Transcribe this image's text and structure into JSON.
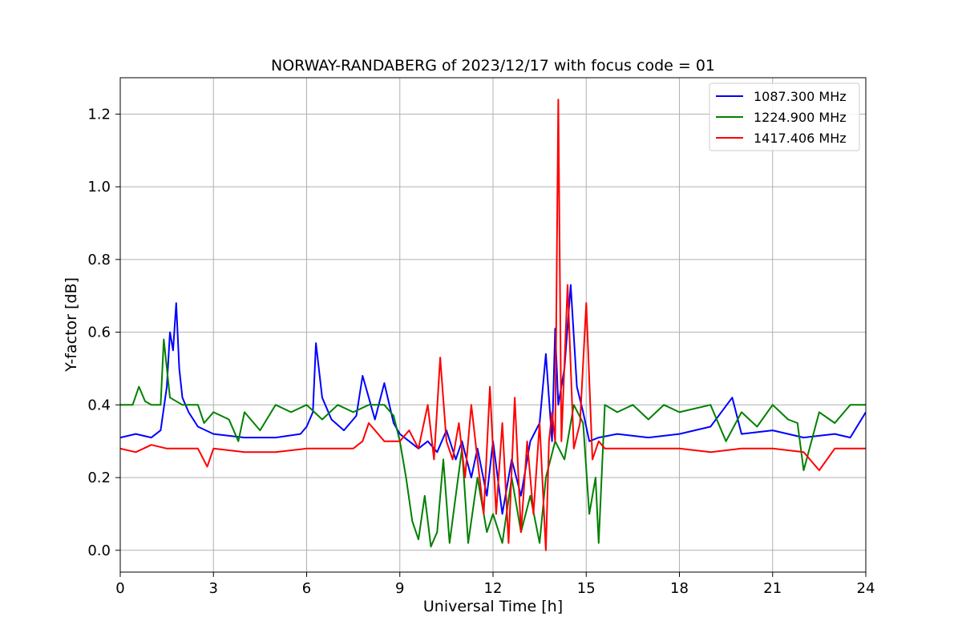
{
  "chart_data": {
    "type": "line",
    "title": "NORWAY-RANDABERG of 2023/12/17 with focus code = 01",
    "xlabel": "Universal Time [h]",
    "ylabel": "Y-factor [dB]",
    "xlim": [
      0,
      24
    ],
    "ylim": [
      -0.06,
      1.3
    ],
    "x_ticks": [
      0,
      3,
      6,
      9,
      12,
      15,
      18,
      21,
      24
    ],
    "y_ticks": [
      0.0,
      0.2,
      0.4,
      0.6,
      0.8,
      1.0,
      1.2
    ],
    "x_tick_labels": [
      "0",
      "3",
      "6",
      "9",
      "12",
      "15",
      "18",
      "21",
      "24"
    ],
    "y_tick_labels": [
      "0.0",
      "0.2",
      "0.4",
      "0.6",
      "0.8",
      "1.0",
      "1.2"
    ],
    "grid": true,
    "legend_position": "top-right",
    "series": [
      {
        "name": "1087.300 MHz",
        "color": "#0000ff",
        "x": [
          0.0,
          0.5,
          1.0,
          1.3,
          1.5,
          1.6,
          1.7,
          1.8,
          1.9,
          2.0,
          2.2,
          2.5,
          3.0,
          4.0,
          5.0,
          5.8,
          6.0,
          6.2,
          6.3,
          6.5,
          6.8,
          7.2,
          7.6,
          7.8,
          8.0,
          8.2,
          8.5,
          8.8,
          9.0,
          9.3,
          9.6,
          9.9,
          10.2,
          10.5,
          10.8,
          11.0,
          11.3,
          11.5,
          11.8,
          12.0,
          12.3,
          12.6,
          12.9,
          13.2,
          13.5,
          13.7,
          13.9,
          14.0,
          14.1,
          14.3,
          14.5,
          14.7,
          14.9,
          15.1,
          15.4,
          16.0,
          17.0,
          18.0,
          19.0,
          19.7,
          20.0,
          21.0,
          22.0,
          23.0,
          23.5,
          24.0
        ],
        "y": [
          0.31,
          0.32,
          0.31,
          0.33,
          0.45,
          0.6,
          0.55,
          0.68,
          0.5,
          0.42,
          0.38,
          0.34,
          0.32,
          0.31,
          0.31,
          0.32,
          0.34,
          0.38,
          0.57,
          0.42,
          0.36,
          0.33,
          0.37,
          0.48,
          0.42,
          0.36,
          0.46,
          0.35,
          0.32,
          0.3,
          0.28,
          0.3,
          0.27,
          0.33,
          0.25,
          0.3,
          0.2,
          0.28,
          0.15,
          0.3,
          0.1,
          0.25,
          0.15,
          0.3,
          0.35,
          0.54,
          0.3,
          0.61,
          0.4,
          0.5,
          0.73,
          0.45,
          0.38,
          0.3,
          0.31,
          0.32,
          0.31,
          0.32,
          0.34,
          0.42,
          0.32,
          0.33,
          0.31,
          0.32,
          0.31,
          0.38
        ]
      },
      {
        "name": "1224.900 MHz",
        "color": "#008000",
        "x": [
          0.0,
          0.4,
          0.6,
          0.8,
          1.0,
          1.3,
          1.4,
          1.6,
          2.0,
          2.5,
          2.7,
          3.0,
          3.5,
          3.8,
          4.0,
          4.5,
          5.0,
          5.5,
          6.0,
          6.5,
          7.0,
          7.5,
          8.0,
          8.5,
          8.8,
          9.0,
          9.2,
          9.4,
          9.6,
          9.8,
          10.0,
          10.2,
          10.4,
          10.6,
          10.8,
          11.0,
          11.2,
          11.5,
          11.8,
          12.0,
          12.3,
          12.6,
          12.9,
          13.2,
          13.5,
          13.7,
          14.0,
          14.3,
          14.6,
          14.9,
          15.1,
          15.3,
          15.4,
          15.6,
          16.0,
          16.5,
          17.0,
          17.5,
          18.0,
          19.0,
          19.5,
          20.0,
          20.5,
          21.0,
          21.5,
          21.8,
          22.0,
          22.5,
          23.0,
          23.5,
          24.0
        ],
        "y": [
          0.4,
          0.4,
          0.45,
          0.41,
          0.4,
          0.4,
          0.58,
          0.42,
          0.4,
          0.4,
          0.35,
          0.38,
          0.36,
          0.3,
          0.38,
          0.33,
          0.4,
          0.38,
          0.4,
          0.36,
          0.4,
          0.38,
          0.4,
          0.4,
          0.37,
          0.3,
          0.2,
          0.08,
          0.03,
          0.15,
          0.01,
          0.05,
          0.25,
          0.02,
          0.15,
          0.28,
          0.02,
          0.2,
          0.05,
          0.1,
          0.02,
          0.2,
          0.05,
          0.15,
          0.02,
          0.2,
          0.3,
          0.25,
          0.4,
          0.35,
          0.1,
          0.2,
          0.02,
          0.4,
          0.38,
          0.4,
          0.36,
          0.4,
          0.38,
          0.4,
          0.3,
          0.38,
          0.34,
          0.4,
          0.36,
          0.35,
          0.22,
          0.38,
          0.35,
          0.4,
          0.4
        ]
      },
      {
        "name": "1417.406 MHz",
        "color": "#ff0000",
        "x": [
          0.0,
          0.5,
          1.0,
          1.5,
          2.0,
          2.5,
          2.8,
          3.0,
          4.0,
          5.0,
          6.0,
          7.0,
          7.5,
          7.8,
          8.0,
          8.5,
          9.0,
          9.3,
          9.6,
          9.9,
          10.1,
          10.3,
          10.5,
          10.7,
          10.9,
          11.1,
          11.3,
          11.5,
          11.7,
          11.9,
          12.1,
          12.3,
          12.5,
          12.7,
          12.9,
          13.1,
          13.3,
          13.5,
          13.7,
          13.8,
          13.9,
          14.0,
          14.1,
          14.2,
          14.4,
          14.6,
          14.8,
          15.0,
          15.2,
          15.4,
          15.6,
          16.0,
          17.0,
          18.0,
          19.0,
          20.0,
          21.0,
          22.0,
          22.5,
          23.0,
          24.0
        ],
        "y": [
          0.28,
          0.27,
          0.29,
          0.28,
          0.28,
          0.28,
          0.23,
          0.28,
          0.27,
          0.27,
          0.28,
          0.28,
          0.28,
          0.3,
          0.35,
          0.3,
          0.3,
          0.33,
          0.28,
          0.4,
          0.25,
          0.53,
          0.3,
          0.25,
          0.35,
          0.2,
          0.4,
          0.25,
          0.1,
          0.45,
          0.1,
          0.35,
          0.02,
          0.42,
          0.05,
          0.3,
          0.1,
          0.35,
          0.0,
          0.3,
          0.38,
          0.3,
          1.24,
          0.3,
          0.73,
          0.28,
          0.35,
          0.68,
          0.25,
          0.3,
          0.28,
          0.28,
          0.28,
          0.28,
          0.27,
          0.28,
          0.28,
          0.27,
          0.22,
          0.28,
          0.28
        ]
      }
    ]
  }
}
